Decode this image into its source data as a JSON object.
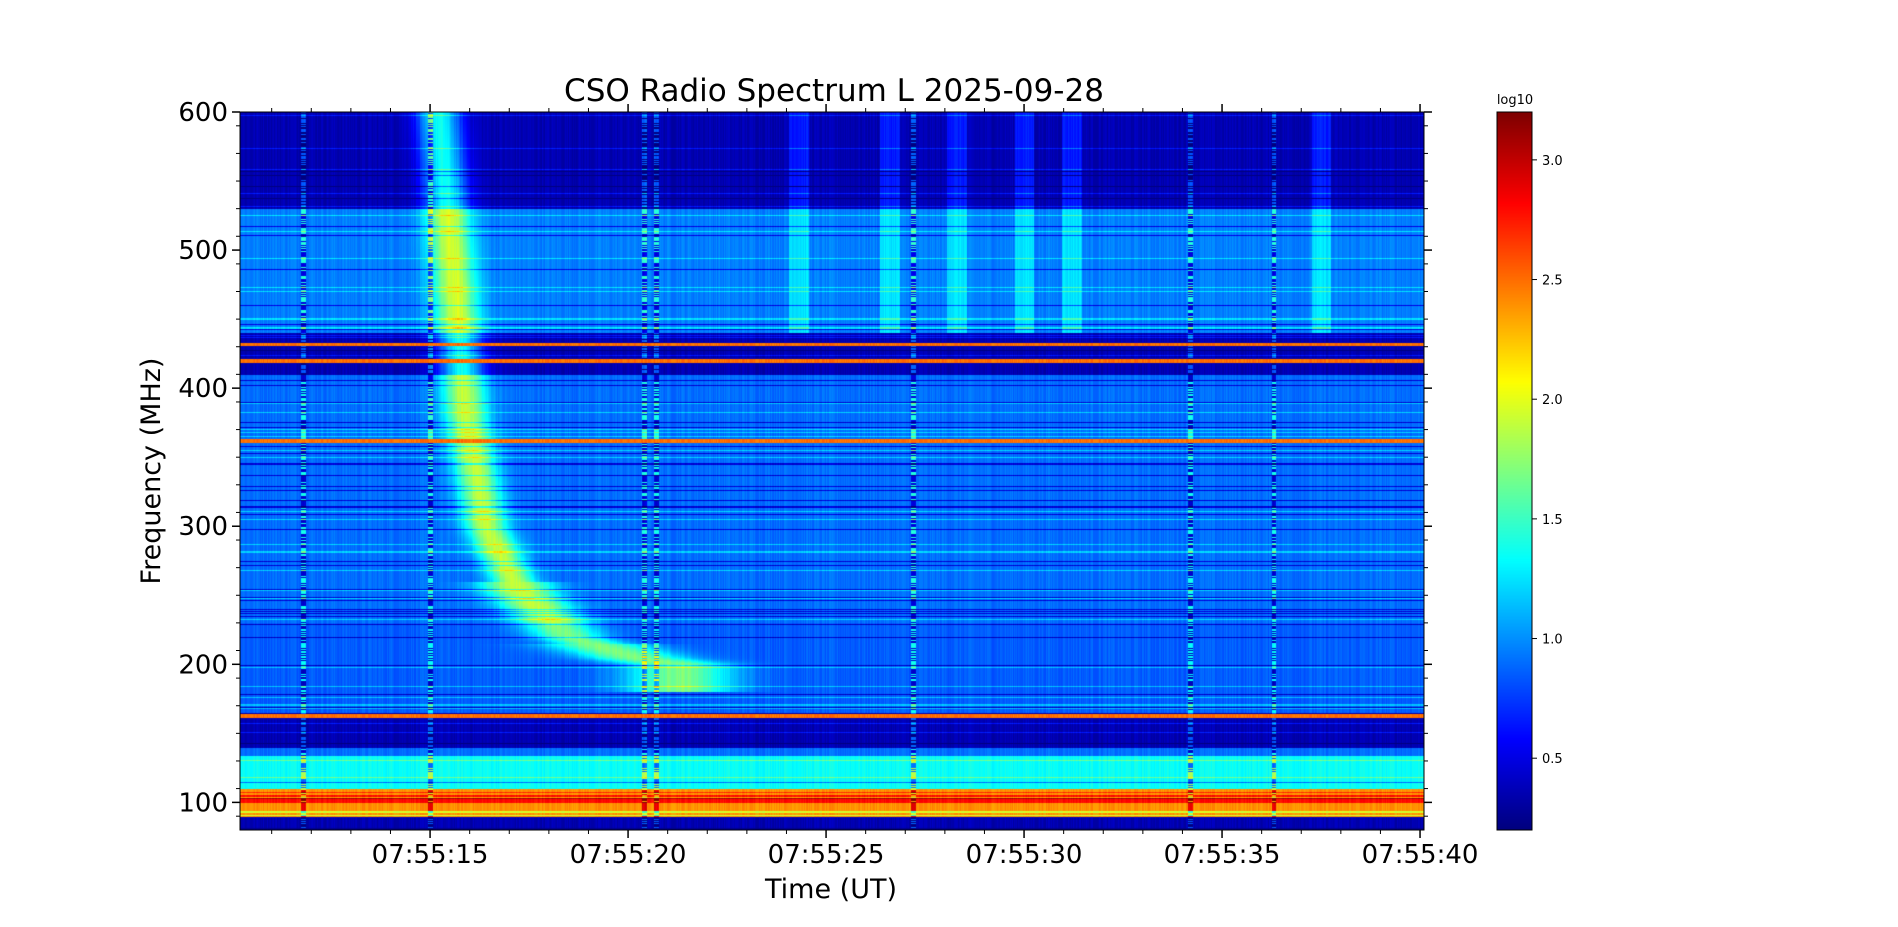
{
  "chart_data": {
    "type": "heatmap",
    "title": "CSO Radio Spectrum L 2025-09-28",
    "xlabel": "Time (UT)",
    "ylabel": "Frequency (MHz)",
    "colorbar_label": "log10",
    "colormap": "jet",
    "x_range": [
      "07:55:10",
      "07:55:40"
    ],
    "x_ticks": [
      "07:55:15",
      "07:55:20",
      "07:55:25",
      "07:55:30",
      "07:55:35",
      "07:55:40"
    ],
    "x_tick_values": [
      15,
      20,
      25,
      30,
      35,
      40
    ],
    "y_range": [
      80,
      600
    ],
    "y_ticks": [
      100,
      200,
      300,
      400,
      500,
      600
    ],
    "colorbar_range": [
      0.2,
      3.2
    ],
    "colorbar_ticks": [
      0.5,
      1.0,
      1.5,
      2.0,
      2.5,
      3.0
    ],
    "colorbar_tick_labels": [
      "0.5",
      "1.0",
      "1.5",
      "2.0",
      "2.5",
      "3.0"
    ],
    "grid": false,
    "features": {
      "quiet_bands": [
        [
          80,
          90
        ],
        [
          140,
          165
        ],
        [
          410,
          440
        ],
        [
          530,
          600
        ]
      ],
      "hot_bands": [
        [
          90,
          110
        ]
      ],
      "rfi_lines": [
        362,
        420,
        432,
        163
      ],
      "burst_drift": [
        {
          "t": 15.2,
          "f": 600
        },
        {
          "t": 15.6,
          "f": 480
        },
        {
          "t": 15.9,
          "f": 380
        },
        {
          "t": 16.4,
          "f": 300
        },
        {
          "t": 17.2,
          "f": 255
        },
        {
          "t": 18.5,
          "f": 220
        },
        {
          "t": 20.2,
          "f": 205
        },
        {
          "t": 21.3,
          "f": 200
        }
      ],
      "vertical_stripes": [
        11.8,
        15.0,
        20.4,
        20.7,
        27.2,
        34.2,
        36.3
      ]
    }
  }
}
